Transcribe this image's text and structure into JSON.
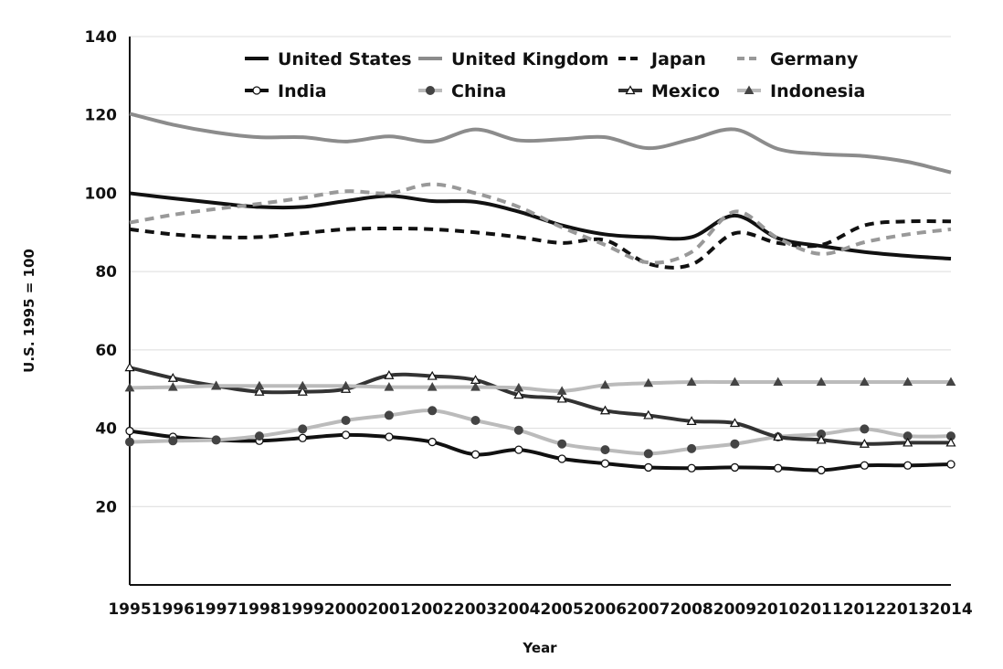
{
  "chart_data": {
    "type": "line",
    "title": "",
    "xlabel": "Year",
    "ylabel": "U.S. 1995 = 100",
    "ylim": [
      0,
      140
    ],
    "yticks": [
      20,
      40,
      60,
      80,
      100,
      120,
      140
    ],
    "grid": "horizontal",
    "legend_position": "top",
    "x": [
      1995,
      1996,
      1997,
      1998,
      1999,
      2000,
      2001,
      2002,
      2003,
      2004,
      2005,
      2006,
      2007,
      2008,
      2009,
      2010,
      2011,
      2012,
      2013,
      2014
    ],
    "series": [
      {
        "name": "United States",
        "color": "#111111",
        "dash": "solid",
        "marker": "none",
        "values": [
          100,
          98.7,
          97.5,
          96.5,
          96.5,
          98,
          99.3,
          98,
          97.8,
          95.3,
          91.8,
          89.5,
          88.8,
          88.8,
          94.3,
          88.5,
          86.5,
          85,
          84,
          83.3
        ]
      },
      {
        "name": "United Kingdom",
        "color": "#8c8c8c",
        "dash": "solid",
        "marker": "none",
        "values": [
          120.3,
          117.5,
          115.5,
          114.3,
          114.3,
          113.2,
          114.5,
          113.2,
          116.3,
          113.5,
          113.8,
          114.3,
          111.5,
          113.8,
          116.3,
          111.3,
          110,
          109.5,
          108,
          105.3
        ]
      },
      {
        "name": "Japan",
        "color": "#111111",
        "dash": "dashed",
        "marker": "none",
        "values": [
          90.8,
          89.5,
          88.8,
          88.8,
          89.8,
          90.8,
          91,
          90.8,
          90,
          88.8,
          87.3,
          88,
          82,
          81.8,
          89.8,
          87.3,
          86.8,
          91.8,
          92.8,
          92.8
        ]
      },
      {
        "name": "Germany",
        "color": "#999999",
        "dash": "dashed",
        "marker": "none",
        "values": [
          92.5,
          94.5,
          96,
          97.3,
          98.8,
          100.5,
          100,
          102.3,
          100,
          96.5,
          91.3,
          86.8,
          82.3,
          85,
          95.3,
          88.5,
          84.5,
          87.5,
          89.5,
          90.8
        ]
      },
      {
        "name": "India",
        "color": "#111111",
        "dash": "solid",
        "marker": "open-circle",
        "values": [
          39.3,
          37.8,
          37,
          36.8,
          37.5,
          38.3,
          37.8,
          36.5,
          33.3,
          34.5,
          32.2,
          31,
          30,
          29.8,
          30,
          29.8,
          29.3,
          30.5,
          30.5,
          30.8
        ]
      },
      {
        "name": "China",
        "color": "#bbbbbb",
        "dash": "solid",
        "marker": "filled-circle",
        "values": [
          36.5,
          36.8,
          37,
          38,
          39.8,
          42,
          43.3,
          44.5,
          42,
          39.5,
          36,
          34.5,
          33.5,
          34.8,
          36,
          37.8,
          38.5,
          39.8,
          38,
          38
        ]
      },
      {
        "name": "Mexico",
        "color": "#333333",
        "dash": "solid",
        "marker": "open-triangle",
        "values": [
          55.5,
          52.8,
          50.8,
          49.3,
          49.3,
          50,
          53.5,
          53.3,
          52.3,
          48.5,
          47.5,
          44.5,
          43.3,
          41.8,
          41.3,
          37.8,
          37,
          36,
          36.3,
          36.3
        ]
      },
      {
        "name": "Indonesia",
        "color": "#bbbbbb",
        "dash": "solid",
        "marker": "filled-triangle",
        "values": [
          50.3,
          50.5,
          50.8,
          50.8,
          50.8,
          50.8,
          50.5,
          50.5,
          50.5,
          50.3,
          49.5,
          51,
          51.5,
          51.8,
          51.8,
          51.8,
          51.8,
          51.8,
          51.8,
          51.8
        ]
      }
    ]
  }
}
